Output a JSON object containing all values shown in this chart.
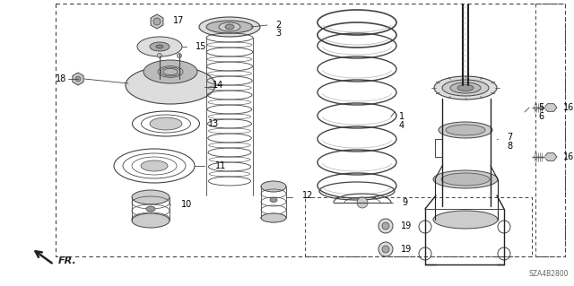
{
  "bg_color": "#ffffff",
  "line_color": "#444444",
  "dark_color": "#222222",
  "gray_color": "#888888",
  "diagram_code": "SZA4B2800",
  "figsize": [
    6.4,
    3.19
  ],
  "dpi": 100
}
